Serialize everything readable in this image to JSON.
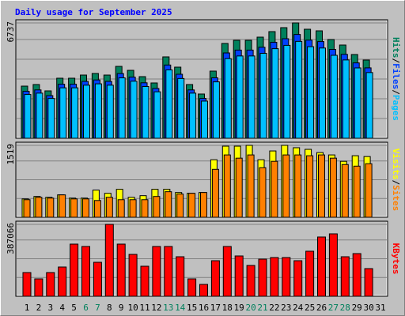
{
  "title": "Daily usage for September 2025",
  "separator": "/",
  "chart_data": [
    {
      "type": "bar",
      "ylim": [
        0,
        6737
      ],
      "yticks": [
        6737
      ],
      "series": [
        {
          "name": "Hits",
          "color": "#00805c",
          "values": [
            3045,
            3138,
            2768,
            3507,
            3507,
            3691,
            3784,
            3691,
            4199,
            3968,
            3599,
            3230,
            4753,
            4153,
            3138,
            2584,
            3922,
            5537,
            5722,
            5722,
            5906,
            6229,
            6460,
            6737,
            6368,
            6275,
            5768,
            5445,
            4891,
            4568,
            null
          ]
        },
        {
          "name": "Files",
          "color": "#0040ff",
          "values": [
            2741,
            2824,
            2491,
            3156,
            3156,
            3322,
            3406,
            3322,
            3779,
            3571,
            3239,
            2907,
            4278,
            3738,
            2824,
            2326,
            3530,
            4983,
            5150,
            5150,
            5315,
            5606,
            5814,
            6063,
            5731,
            5648,
            5191,
            4901,
            4402,
            4111,
            null
          ]
        },
        {
          "name": "Pages",
          "color": "#00c0ff",
          "values": [
            2558,
            2636,
            2325,
            2946,
            2946,
            3100,
            3179,
            3100,
            3527,
            3333,
            3023,
            2713,
            3993,
            3489,
            2636,
            2171,
            3294,
            4651,
            4806,
            4806,
            4961,
            5232,
            5426,
            5659,
            5349,
            5271,
            4845,
            4574,
            4108,
            3837,
            null
          ]
        }
      ]
    },
    {
      "type": "bar",
      "ylim": [
        0,
        1519
      ],
      "yticks": [
        1519
      ],
      "series": [
        {
          "name": "Visits",
          "color": "#ffff00",
          "values": [
            388,
            439,
            422,
            473,
            405,
            405,
            574,
            506,
            591,
            422,
            456,
            591,
            591,
            523,
            506,
            523,
            1215,
            1502,
            1502,
            1519,
            1215,
            1401,
            1519,
            1469,
            1435,
            1367,
            1317,
            1182,
            1300,
            1283,
            null
          ]
        },
        {
          "name": "Sites",
          "color": "#ff8000",
          "values": [
            371,
            422,
            405,
            473,
            388,
            388,
            354,
            422,
            371,
            371,
            371,
            439,
            540,
            490,
            506,
            523,
            1013,
            1317,
            1249,
            1317,
            1047,
            1182,
            1317,
            1317,
            1300,
            1317,
            1249,
            1114,
            1080,
            1131,
            null
          ]
        }
      ]
    },
    {
      "type": "bar",
      "ylim": [
        0,
        387066
      ],
      "yticks": [
        387066
      ],
      "categories": [
        "1",
        "2",
        "3",
        "4",
        "5",
        "6",
        "7",
        "8",
        "9",
        "10",
        "11",
        "12",
        "13",
        "14",
        "15",
        "16",
        "17",
        "18",
        "19",
        "20",
        "21",
        "22",
        "23",
        "24",
        "25",
        "26",
        "27",
        "28",
        "29",
        "30",
        "31"
      ],
      "category_colors": [
        "#000000",
        "#000000",
        "#000000",
        "#000000",
        "#000000",
        "#00805c",
        "#00805c",
        "#000000",
        "#000000",
        "#000000",
        "#000000",
        "#000000",
        "#00805c",
        "#00805c",
        "#000000",
        "#000000",
        "#000000",
        "#000000",
        "#000000",
        "#00805c",
        "#00805c",
        "#000000",
        "#000000",
        "#000000",
        "#000000",
        "#000000",
        "#00805c",
        "#00805c",
        "#000000",
        "#000000",
        "#000000"
      ],
      "series": [
        {
          "name": "KBytes",
          "color": "#ff0000",
          "values": [
            127605,
            93577,
            127605,
            157380,
            280731,
            267971,
            182901,
            387066,
            280731,
            225436,
            161633,
            267971,
            267971,
            212675,
            93577,
            63803,
            191408,
            267971,
            216929,
            165887,
            199915,
            208422,
            208422,
            191408,
            242450,
            319013,
            336027,
            212675,
            229689,
            148873,
            null
          ]
        }
      ]
    }
  ]
}
